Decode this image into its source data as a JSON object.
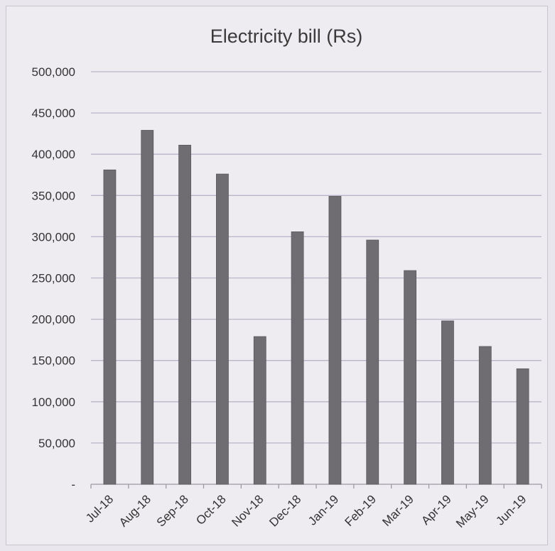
{
  "chart_data": {
    "type": "bar",
    "title": "Electricity bill (Rs)",
    "xlabel": "",
    "ylabel": "",
    "categories": [
      "Jul-18",
      "Aug-18",
      "Sep-18",
      "Oct-18",
      "Nov-18",
      "Dec-18",
      "Jan-19",
      "Feb-19",
      "Mar-19",
      "Apr-19",
      "May-19",
      "Jun-19"
    ],
    "values": [
      381000,
      429000,
      411000,
      376000,
      179000,
      306000,
      349000,
      296000,
      259000,
      198000,
      167000,
      140000
    ],
    "ylim": [
      0,
      500000
    ],
    "yticks": [
      0,
      50000,
      100000,
      150000,
      200000,
      250000,
      300000,
      350000,
      400000,
      450000,
      500000
    ],
    "ytick_labels": [
      "-",
      "50,000",
      "100,000",
      "150,000",
      "200,000",
      "250,000",
      "300,000",
      "350,000",
      "400,000",
      "450,000",
      "500,000"
    ],
    "grid": true,
    "legend": "none",
    "bar_color": "#6f6d71"
  }
}
